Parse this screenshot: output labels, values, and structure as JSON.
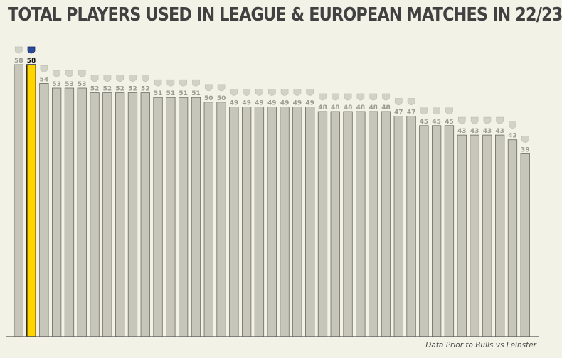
{
  "title": "TOTAL PLAYERS USED IN LEAGUE & EUROPEAN MATCHES IN 22/23",
  "footnote": "Data Prior to Bulls vs Leinster",
  "colors": {
    "background": "#f3f2e6",
    "bar": "#c7c6bb",
    "bar_stroke": "#6b6b63",
    "highlight": "#ffd400",
    "highlight_stroke": "#1a1a1a",
    "label": "#9b9b92",
    "highlight_label": "#111111",
    "axis": "#555555"
  },
  "chart_data": {
    "type": "bar",
    "title": "TOTAL PLAYERS USED IN LEAGUE & EUROPEAN MATCHES IN 22/23",
    "xlabel": "",
    "ylabel": "",
    "ylim": [
      0,
      62
    ],
    "grid": false,
    "legend": "none",
    "categories_are_team_logos": true,
    "values": [
      58,
      58,
      54,
      53,
      53,
      53,
      52,
      52,
      52,
      52,
      52,
      51,
      51,
      51,
      51,
      50,
      50,
      49,
      49,
      49,
      49,
      49,
      49,
      49,
      48,
      48,
      48,
      48,
      48,
      48,
      47,
      47,
      45,
      45,
      45,
      43,
      43,
      43,
      43,
      42,
      39
    ],
    "highlight_index": 1,
    "data_labels": [
      "58",
      "58",
      "54",
      "53",
      "53",
      "53",
      "52",
      "52",
      "52",
      "52",
      "52",
      "51",
      "51",
      "51",
      "51",
      "50",
      "50",
      "49",
      "49",
      "49",
      "49",
      "49",
      "49",
      "49",
      "48",
      "48",
      "48",
      "48",
      "48",
      "48",
      "47",
      "47",
      "45",
      "45",
      "45",
      "43",
      "43",
      "43",
      "43",
      "42",
      "39"
    ]
  }
}
